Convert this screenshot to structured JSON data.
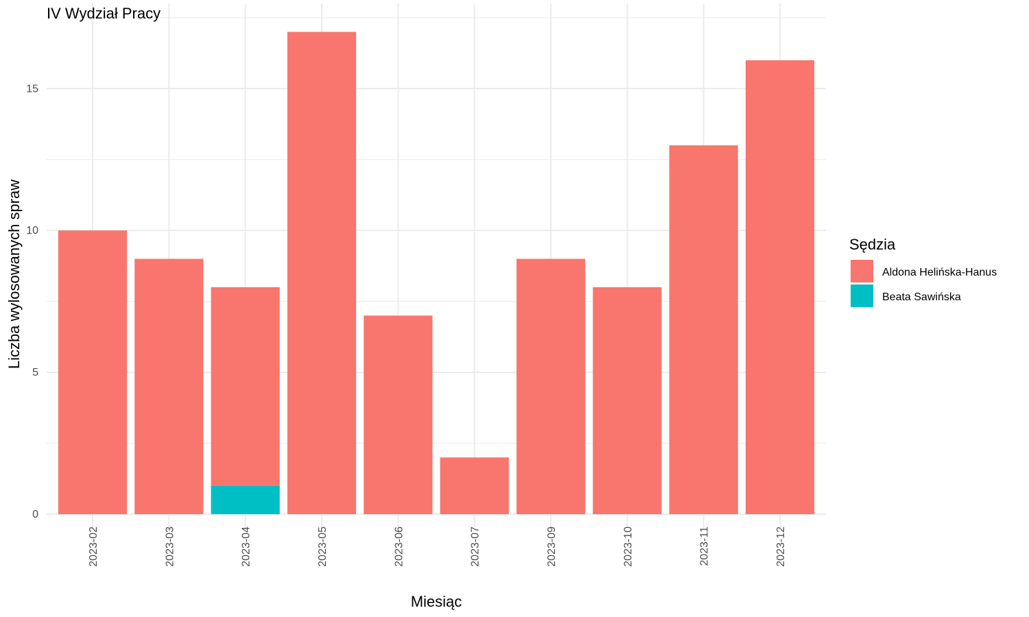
{
  "chart_data": {
    "type": "bar",
    "stacked": true,
    "title": "IV Wydział Pracy",
    "xlabel": "Miesiąc",
    "ylabel": "Liczba wylosowanych spraw",
    "categories": [
      "2023-02",
      "2023-03",
      "2023-04",
      "2023-05",
      "2023-06",
      "2023-07",
      "2023-09",
      "2023-10",
      "2023-11",
      "2023-12"
    ],
    "series": [
      {
        "name": "Aldona Helińska-Hanus",
        "color": "#F8766D",
        "values": [
          10,
          9,
          7,
          17,
          7,
          2,
          9,
          8,
          13,
          16
        ]
      },
      {
        "name": "Beata Sawińska",
        "color": "#00BFC4",
        "values": [
          0,
          0,
          1,
          0,
          0,
          0,
          0,
          0,
          0,
          0
        ]
      }
    ],
    "ylim": [
      0,
      17.85
    ],
    "y_ticks": [
      0,
      5,
      10,
      15
    ],
    "grid": true,
    "legend": {
      "title": "Sędzia",
      "position": "right"
    }
  }
}
